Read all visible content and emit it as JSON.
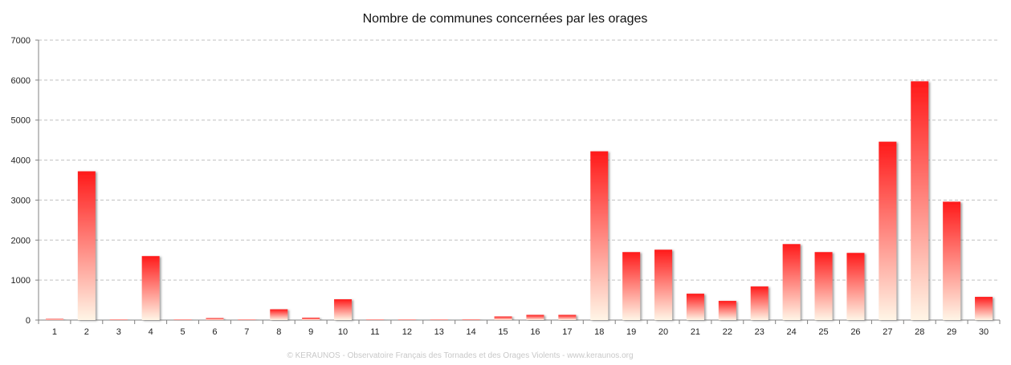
{
  "chart_data": {
    "type": "bar",
    "title": "Nombre de communes concernées par les orages",
    "xlabel": "",
    "ylabel": "",
    "categories": [
      "1",
      "2",
      "3",
      "4",
      "5",
      "6",
      "7",
      "8",
      "9",
      "10",
      "11",
      "12",
      "13",
      "14",
      "15",
      "16",
      "17",
      "18",
      "19",
      "20",
      "21",
      "22",
      "23",
      "24",
      "25",
      "26",
      "27",
      "28",
      "29",
      "30"
    ],
    "values": [
      30,
      3720,
      15,
      1600,
      5,
      50,
      5,
      270,
      60,
      520,
      5,
      5,
      5,
      20,
      90,
      130,
      130,
      4220,
      1700,
      1760,
      660,
      480,
      840,
      1900,
      1700,
      1680,
      4460,
      5970,
      2960,
      580
    ],
    "ylim": [
      0,
      7000
    ],
    "yticks": [
      "0",
      "1000",
      "2000",
      "3000",
      "4000",
      "5000",
      "6000",
      "7000"
    ],
    "grid": true,
    "legend": "none",
    "colors": {
      "bar_top": "#ff1a1a",
      "bar_bottom": "#fff5e6",
      "grid": "#c0c0c0",
      "axis": "#808080"
    }
  },
  "footer": "© KERAUNOS - Observatoire Français des Tornades et des Orages Violents - www.keraunos.org"
}
